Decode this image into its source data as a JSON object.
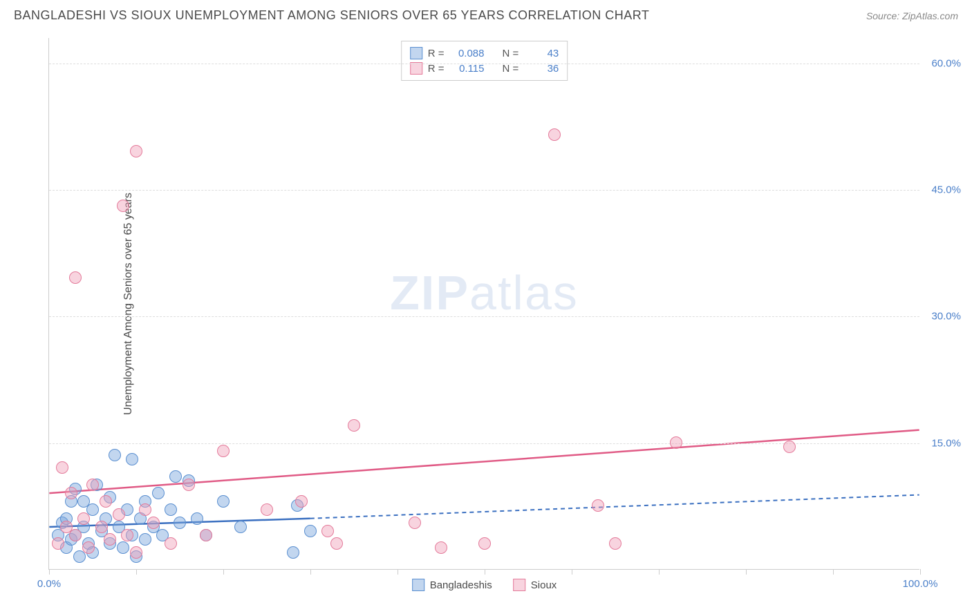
{
  "title": "BANGLADESHI VS SIOUX UNEMPLOYMENT AMONG SENIORS OVER 65 YEARS CORRELATION CHART",
  "source": "Source: ZipAtlas.com",
  "y_axis_label": "Unemployment Among Seniors over 65 years",
  "watermark_a": "ZIP",
  "watermark_b": "atlas",
  "chart": {
    "type": "scatter",
    "xlim": [
      0,
      100
    ],
    "ylim": [
      0,
      63
    ],
    "x_ticks": [
      0,
      10,
      20,
      30,
      40,
      50,
      60,
      70,
      80,
      90,
      100
    ],
    "x_tick_labels": {
      "0": "0.0%",
      "100": "100.0%"
    },
    "y_gridlines": [
      15,
      30,
      45,
      60
    ],
    "y_tick_labels": {
      "15": "15.0%",
      "30": "30.0%",
      "45": "45.0%",
      "60": "60.0%"
    },
    "background_color": "#ffffff",
    "grid_color": "#dddddd",
    "axis_color": "#cccccc",
    "tick_label_color": "#4a7fc9",
    "series": [
      {
        "name": "Bangladeshis",
        "fill": "rgba(120,165,220,0.45)",
        "stroke": "#5a8fd0",
        "trend_color": "#3a6fc0",
        "trend": {
          "x1": 0,
          "y1": 5.0,
          "x2_solid": 30,
          "y2_solid": 6.0,
          "x2_dash": 100,
          "y2_dash": 8.8
        },
        "R": "0.088",
        "N": "43",
        "points": [
          [
            1,
            4
          ],
          [
            1.5,
            5.5
          ],
          [
            2,
            2.5
          ],
          [
            2,
            6
          ],
          [
            2.5,
            3.5
          ],
          [
            2.5,
            8
          ],
          [
            3,
            4
          ],
          [
            3,
            9.5
          ],
          [
            3.5,
            1.5
          ],
          [
            4,
            5
          ],
          [
            4,
            8
          ],
          [
            4.5,
            3
          ],
          [
            5,
            7
          ],
          [
            5,
            2
          ],
          [
            5.5,
            10
          ],
          [
            6,
            4.5
          ],
          [
            6.5,
            6
          ],
          [
            7,
            8.5
          ],
          [
            7,
            3
          ],
          [
            7.5,
            13.5
          ],
          [
            8,
            5
          ],
          [
            8.5,
            2.5
          ],
          [
            9,
            7
          ],
          [
            9.5,
            13
          ],
          [
            9.5,
            4
          ],
          [
            10,
            1.5
          ],
          [
            10.5,
            6
          ],
          [
            11,
            8
          ],
          [
            11,
            3.5
          ],
          [
            12,
            5
          ],
          [
            12.5,
            9
          ],
          [
            13,
            4
          ],
          [
            14,
            7
          ],
          [
            14.5,
            11
          ],
          [
            15,
            5.5
          ],
          [
            16,
            10.5
          ],
          [
            17,
            6
          ],
          [
            18,
            4
          ],
          [
            20,
            8
          ],
          [
            22,
            5
          ],
          [
            28,
            2
          ],
          [
            28.5,
            7.5
          ],
          [
            30,
            4.5
          ]
        ]
      },
      {
        "name": "Sioux",
        "fill": "rgba(240,160,185,0.45)",
        "stroke": "#e47a9a",
        "trend_color": "#e05a85",
        "trend": {
          "x1": 0,
          "y1": 9.0,
          "x2_solid": 100,
          "y2_solid": 16.5,
          "x2_dash": 100,
          "y2_dash": 16.5
        },
        "R": "0.115",
        "N": "36",
        "points": [
          [
            1,
            3
          ],
          [
            1.5,
            12
          ],
          [
            2,
            5
          ],
          [
            2.5,
            9
          ],
          [
            3,
            4
          ],
          [
            3,
            34.5
          ],
          [
            4,
            6
          ],
          [
            4.5,
            2.5
          ],
          [
            5,
            10
          ],
          [
            6,
            5
          ],
          [
            6.5,
            8
          ],
          [
            7,
            3.5
          ],
          [
            8,
            6.5
          ],
          [
            8.5,
            43
          ],
          [
            9,
            4
          ],
          [
            10,
            49.5
          ],
          [
            10,
            2
          ],
          [
            11,
            7
          ],
          [
            12,
            5.5
          ],
          [
            14,
            3
          ],
          [
            16,
            10
          ],
          [
            18,
            4
          ],
          [
            20,
            14
          ],
          [
            25,
            7
          ],
          [
            29,
            8
          ],
          [
            32,
            4.5
          ],
          [
            33,
            3
          ],
          [
            35,
            17
          ],
          [
            42,
            5.5
          ],
          [
            45,
            2.5
          ],
          [
            50,
            3
          ],
          [
            58,
            51.5
          ],
          [
            63,
            7.5
          ],
          [
            65,
            3
          ],
          [
            72,
            15
          ],
          [
            85,
            14.5
          ]
        ]
      }
    ]
  },
  "legend_top": {
    "r_label": "R =",
    "n_label": "N ="
  },
  "legend_bottom_labels": [
    "Bangladeshis",
    "Sioux"
  ]
}
